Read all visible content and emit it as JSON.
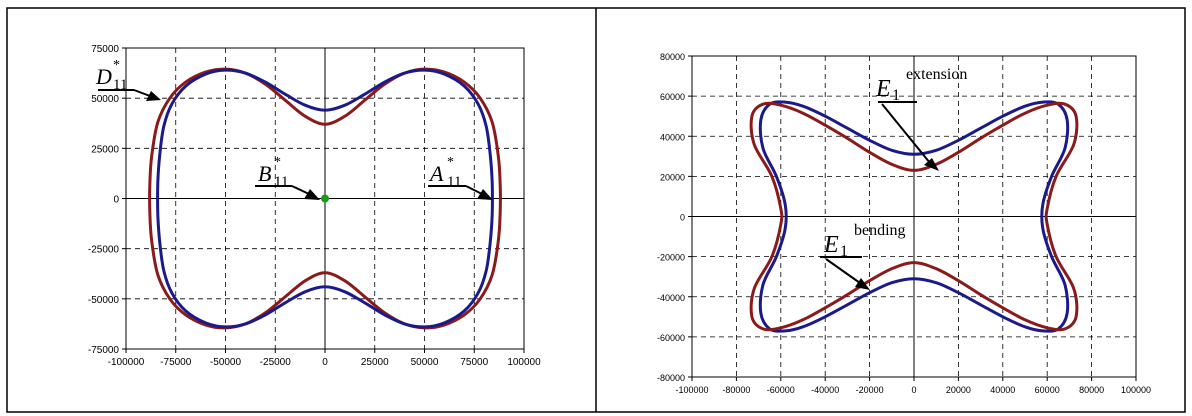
{
  "chart_data": [
    {
      "type": "line",
      "xlim": [
        -100000,
        100000
      ],
      "ylim": [
        -75000,
        75000
      ],
      "xticks": [
        -100000,
        -75000,
        -50000,
        -25000,
        0,
        25000,
        50000,
        75000,
        100000
      ],
      "yticks": [
        -75000,
        -50000,
        -25000,
        0,
        25000,
        50000,
        75000
      ],
      "xtick_labels": [
        "-100000",
        "-75000",
        "-50000",
        "-25000",
        "0",
        "25000",
        "50000",
        "75000",
        "100000"
      ],
      "ytick_labels": [
        "-75000",
        "-50000",
        "-25000",
        "0",
        "25000",
        "50000",
        "75000"
      ],
      "grid": true,
      "series": [
        {
          "name": "A*11",
          "color": "#8b1a1a",
          "x": [
            0,
            10000,
            20000,
            30000,
            40000,
            50000,
            60000,
            70000,
            78000,
            84000,
            87000,
            88000,
            88000,
            87000,
            84000,
            78000,
            70000,
            60000,
            50000,
            40000,
            30000,
            20000,
            10000,
            0,
            -10000,
            -20000,
            -30000,
            -40000,
            -50000,
            -60000,
            -70000,
            -78000,
            -84000,
            -87000,
            -88000,
            -88000,
            -87000,
            -84000,
            -78000,
            -70000,
            -60000,
            -50000,
            -40000,
            -30000,
            -20000,
            -10000,
            0
          ],
          "y": [
            37000,
            41000,
            49000,
            57000,
            62500,
            64500,
            63000,
            58000,
            50000,
            38000,
            22000,
            8000,
            -8000,
            -22000,
            -38000,
            -50000,
            -58000,
            -63000,
            -64500,
            -62500,
            -57000,
            -49000,
            -41000,
            -37000,
            -41000,
            -49000,
            -57000,
            -62500,
            -64500,
            -63000,
            -58000,
            -50000,
            -38000,
            -22000,
            -8000,
            8000,
            22000,
            38000,
            50000,
            58000,
            63000,
            64500,
            62500,
            57000,
            49000,
            41000,
            37000
          ]
        },
        {
          "name": "D*11",
          "color": "#1a1a8b",
          "x": [
            0,
            10000,
            20000,
            30000,
            40000,
            50000,
            60000,
            70000,
            77000,
            81000,
            83000,
            84000,
            84000,
            83000,
            81000,
            77000,
            70000,
            60000,
            50000,
            40000,
            30000,
            20000,
            10000,
            0,
            -10000,
            -20000,
            -30000,
            -40000,
            -50000,
            -60000,
            -70000,
            -77000,
            -81000,
            -83000,
            -84000,
            -84000,
            -83000,
            -81000,
            -77000,
            -70000,
            -60000,
            -50000,
            -40000,
            -30000,
            -20000,
            -10000,
            0
          ],
          "y": [
            44000,
            46500,
            52000,
            58000,
            62500,
            64000,
            62000,
            56000,
            47000,
            36000,
            22000,
            8000,
            -8000,
            -22000,
            -36000,
            -47000,
            -56000,
            -62000,
            -64000,
            -62500,
            -58000,
            -52000,
            -46500,
            -44000,
            -46500,
            -52000,
            -58000,
            -62500,
            -64000,
            -62000,
            -56000,
            -47000,
            -36000,
            -22000,
            -8000,
            8000,
            22000,
            36000,
            47000,
            56000,
            62000,
            64000,
            62500,
            58000,
            52000,
            46500,
            44000
          ]
        },
        {
          "name": "B*11",
          "color": "#1a9a1a",
          "x": [
            0
          ],
          "y": [
            0
          ]
        }
      ],
      "annotations": [
        {
          "base": "D",
          "sup": "*",
          "sub": "11"
        },
        {
          "base": "B",
          "sup": "*",
          "sub": "11"
        },
        {
          "base": "A",
          "sup": "*",
          "sub": "11"
        }
      ]
    },
    {
      "type": "line",
      "xlim": [
        -100000,
        100000
      ],
      "ylim": [
        -80000,
        80000
      ],
      "xticks": [
        -100000,
        -80000,
        -60000,
        -40000,
        -20000,
        0,
        20000,
        40000,
        60000,
        80000,
        100000
      ],
      "yticks": [
        -80000,
        -60000,
        -40000,
        -20000,
        0,
        20000,
        40000,
        60000,
        80000
      ],
      "xtick_labels": [
        "-100000",
        "-80000",
        "-60000",
        "-40000",
        "-20000",
        "0",
        "20000",
        "40000",
        "60000",
        "80000",
        "100000"
      ],
      "ytick_labels": [
        "-80000",
        "-60000",
        "-40000",
        "-20000",
        "0",
        "20000",
        "40000",
        "60000",
        "80000"
      ],
      "grid": true,
      "series": [
        {
          "name": "E1 extension",
          "color": "#1a1a8b",
          "x": [
            0,
            10000,
            20000,
            30000,
            40000,
            50000,
            58000,
            65000,
            69000,
            68000,
            62000,
            58000,
            58000,
            62000,
            68000,
            69000,
            65000,
            58000,
            50000,
            40000,
            30000,
            20000,
            10000,
            0,
            -10000,
            -20000,
            -30000,
            -40000,
            -50000,
            -58000,
            -65000,
            -69000,
            -68000,
            -62000,
            -58000,
            -58000,
            -62000,
            -68000,
            -69000,
            -65000,
            -58000,
            -50000,
            -40000,
            -30000,
            -20000,
            -10000,
            0
          ],
          "y": [
            31000,
            33000,
            38000,
            44000,
            50000,
            55000,
            57000,
            56000,
            48000,
            34000,
            20000,
            6000,
            -6000,
            -20000,
            -34000,
            -48000,
            -56000,
            -57000,
            -55000,
            -50000,
            -44000,
            -38000,
            -33000,
            -31000,
            -33000,
            -38000,
            -44000,
            -50000,
            -55000,
            -57000,
            -56000,
            -48000,
            -34000,
            -20000,
            -6000,
            6000,
            20000,
            34000,
            48000,
            56000,
            57000,
            55000,
            50000,
            44000,
            38000,
            33000,
            31000
          ]
        },
        {
          "name": "E1 bending",
          "color": "#8b1a1a",
          "x": [
            0,
            10000,
            20000,
            30000,
            40000,
            50000,
            60000,
            68000,
            73000,
            72000,
            64000,
            60000,
            60000,
            64000,
            72000,
            73000,
            68000,
            60000,
            50000,
            40000,
            30000,
            20000,
            10000,
            0,
            -10000,
            -20000,
            -30000,
            -40000,
            -50000,
            -60000,
            -68000,
            -73000,
            -72000,
            -64000,
            -60000,
            -60000,
            -64000,
            -72000,
            -73000,
            -68000,
            -60000,
            -50000,
            -40000,
            -30000,
            -20000,
            -10000,
            0
          ],
          "y": [
            23000,
            26000,
            32000,
            39000,
            45500,
            51500,
            55500,
            56000,
            50000,
            36000,
            20000,
            4000,
            -4000,
            -20000,
            -36000,
            -50000,
            -56000,
            -55500,
            -51500,
            -45500,
            -39000,
            -32000,
            -26000,
            -23000,
            -26000,
            -32000,
            -39000,
            -45500,
            -51500,
            -55500,
            -56000,
            -50000,
            -36000,
            -20000,
            -4000,
            4000,
            20000,
            36000,
            50000,
            56000,
            55500,
            51500,
            45500,
            39000,
            32000,
            26000,
            23000
          ]
        }
      ],
      "annotations": [
        {
          "base": "E",
          "sub": "1",
          "sup": "extension"
        },
        {
          "base": "E",
          "sub": "1",
          "sup": "bending"
        }
      ]
    }
  ]
}
